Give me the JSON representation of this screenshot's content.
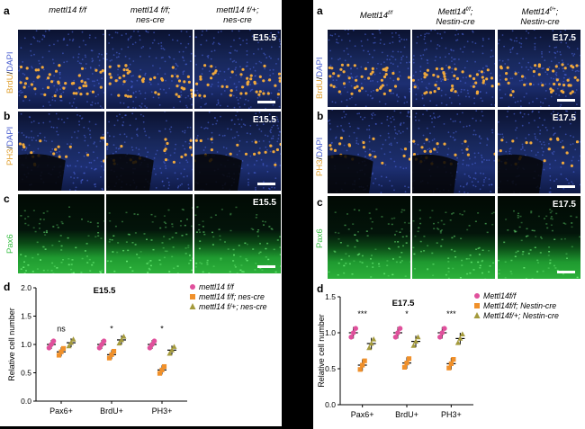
{
  "left": {
    "panels": [
      "a",
      "b",
      "c",
      "d"
    ],
    "col_headers": [
      "mettl14 f/f",
      "mettl14 f/f;\nnes-cre",
      "mettl14 f/+;\nnes-cre"
    ],
    "rows": [
      {
        "stage": "E15.5",
        "label_a": "BrdU",
        "label_b": "DAPI",
        "color_a": "#e0a030",
        "color_b": "#4a5fd0"
      },
      {
        "stage": "E15.5",
        "label_a": "PH3",
        "label_b": "DAPI",
        "color_a": "#e0a030",
        "color_b": "#4a5fd0"
      },
      {
        "stage": "E15.5",
        "label_a": "Pax6",
        "label_b": "",
        "color_a": "#3cc048",
        "color_b": ""
      }
    ],
    "chart_title": "E15.5",
    "ylabel": "Relative cell number",
    "yticks": [
      "0.0",
      "0.5",
      "1.0",
      "1.5",
      "2.0"
    ],
    "xcategories": [
      "Pax6+",
      "BrdU+",
      "PH3+"
    ],
    "annotations": [
      "ns",
      "*",
      "*"
    ],
    "legend": [
      "mettl14 f/f",
      "mettl14 f/f; nes-cre",
      "mettl14 f/+; nes-cre"
    ]
  },
  "right": {
    "panels": [
      "a",
      "b",
      "c",
      "d"
    ],
    "col_headers": [
      "Mettl14f/f",
      "Mettl14f/f;\nNestin-cre",
      "Mettl14f/+;\nNestin-cre"
    ],
    "rows": [
      {
        "stage": "E17.5",
        "label_a": "BrdU",
        "label_b": "DAPI"
      },
      {
        "stage": "E17.5",
        "label_a": "PH3",
        "label_b": "DAPI"
      },
      {
        "stage": "E17.5",
        "label_a": "Pax6",
        "label_b": ""
      }
    ],
    "chart_title": "E17.5",
    "ylabel": "Relative cell number",
    "yticks": [
      "0.0",
      "0.5",
      "1.0",
      "1.5"
    ],
    "xcategories": [
      "Pax6+",
      "BrdU+",
      "PH3+"
    ],
    "annotations": [
      "***",
      "*",
      "***"
    ],
    "legend": [
      "Mettl14f/f",
      "Mettl14f/f; Nestin-cre",
      "Mettl14f/+; Nestin-cre"
    ]
  },
  "colors": {
    "magenta": "#e0509c",
    "orange": "#f0902a",
    "olive": "#a49a3c"
  },
  "chart_data": [
    {
      "type": "scatter",
      "title": "E15.5",
      "ylabel": "Relative cell number",
      "categories": [
        "Pax6+",
        "BrdU+",
        "PH3+"
      ],
      "ylim": [
        0.0,
        2.0
      ],
      "series": [
        {
          "name": "mettl14 f/f",
          "values": [
            1.0,
            1.0,
            1.0
          ]
        },
        {
          "name": "mettl14 f/f; nes-cre",
          "values": [
            0.87,
            0.82,
            0.55
          ]
        },
        {
          "name": "mettl14 f/+; nes-cre",
          "values": [
            1.03,
            1.08,
            0.9
          ]
        }
      ]
    },
    {
      "type": "scatter",
      "title": "E17.5",
      "ylabel": "Relative cell number",
      "categories": [
        "Pax6+",
        "BrdU+",
        "PH3+"
      ],
      "ylim": [
        0.0,
        1.5
      ],
      "series": [
        {
          "name": "Mettl14f/f",
          "values": [
            1.0,
            1.0,
            1.0
          ]
        },
        {
          "name": "Mettl14f/f; Nestin-cre",
          "values": [
            0.55,
            0.58,
            0.57
          ]
        },
        {
          "name": "Mettl14f/+; Nestin-cre",
          "values": [
            0.85,
            0.88,
            0.92
          ]
        }
      ]
    }
  ]
}
